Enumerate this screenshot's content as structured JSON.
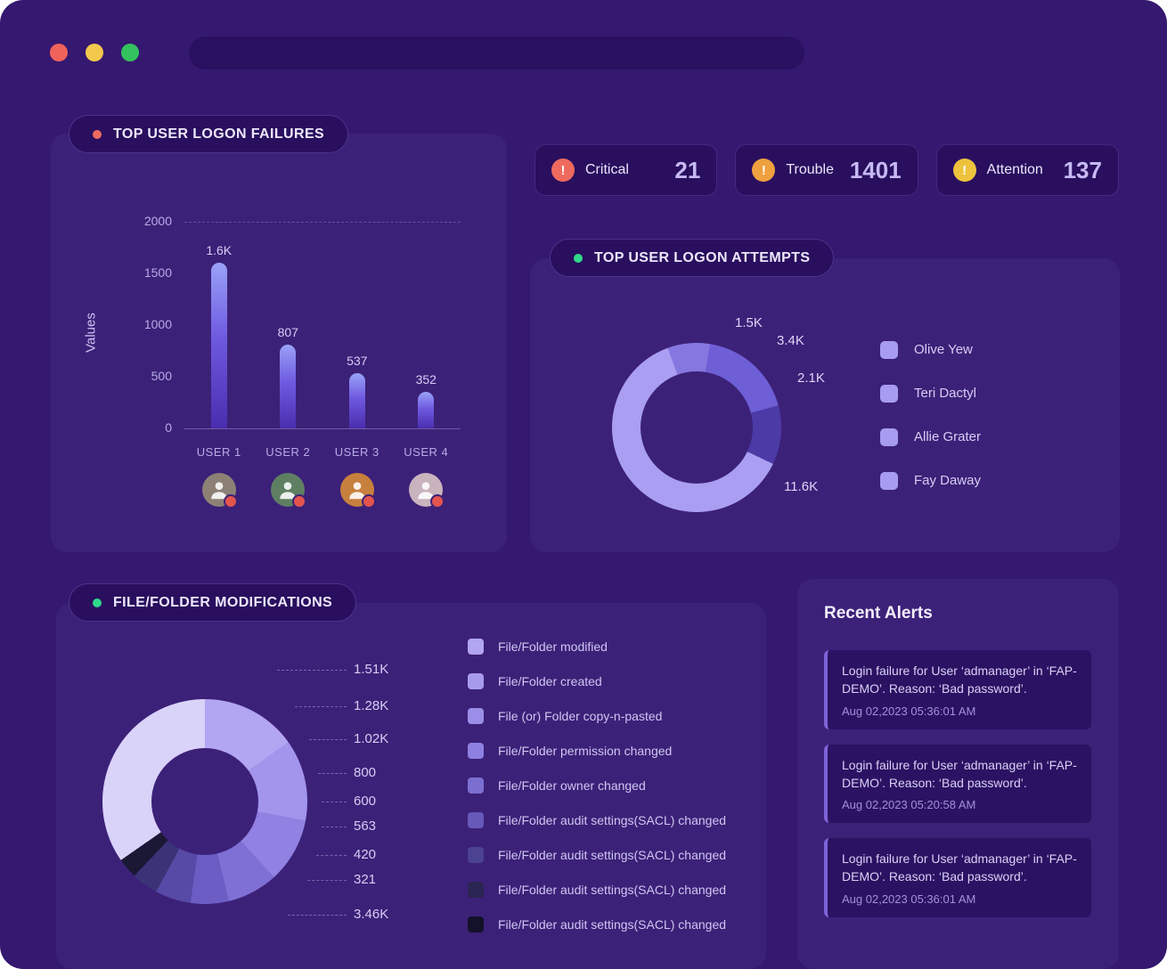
{
  "titlebar": {
    "address_value": ""
  },
  "stats": [
    {
      "label": "Critical",
      "value": "21",
      "icon_color": "#ef6a5e"
    },
    {
      "label": "Trouble",
      "value": "1401",
      "icon_color": "#efa03f"
    },
    {
      "label": "Attention",
      "value": "137",
      "icon_color": "#eec23d"
    }
  ],
  "cards": {
    "logon_failures": {
      "title": "TOP USER LOGON FAILURES",
      "dot_color": "#ef6a5e",
      "badge_color": "#e2544e",
      "avatars": [
        {
          "name": "USER 1",
          "color": "#8d8176"
        },
        {
          "name": "USER 2",
          "color": "#5f7f63"
        },
        {
          "name": "USER 3",
          "color": "#c8803e"
        },
        {
          "name": "USER 4",
          "color": "#c9b3bd"
        }
      ]
    },
    "logon_attempts": {
      "title": "TOP USER LOGON ATTEMPTS",
      "dot_color": "#2fd98a"
    },
    "file_modifications": {
      "title": "FILE/FOLDER MODIFICATIONS",
      "dot_color": "#2fd98a"
    },
    "recent_alerts": {
      "title": "Recent Alerts",
      "alerts": [
        {
          "message": "Login failure for User ‘admanager’ in ‘FAP-DEMO’. Reason: ‘Bad password’.",
          "timestamp": "Aug 02,2023 05:36:01 AM"
        },
        {
          "message": "Login failure for User ‘admanager’ in ‘FAP-DEMO’. Reason: ‘Bad password’.",
          "timestamp": "Aug 02,2023 05:20:58 AM"
        },
        {
          "message": "Login failure for User ‘admanager’ in ‘FAP-DEMO’. Reason: ‘Bad password’.",
          "timestamp": "Aug 02,2023 05:36:01 AM"
        }
      ]
    }
  },
  "chart_data": [
    {
      "type": "bar",
      "title": "TOP USER LOGON FAILURES",
      "categories": [
        "USER 1",
        "USER 2",
        "USER 3",
        "USER 4"
      ],
      "values": [
        1600,
        807,
        537,
        352
      ],
      "value_labels": [
        "1.6K",
        "807",
        "537",
        "352"
      ],
      "xlabel": "",
      "ylabel": "Values",
      "ylim": [
        0,
        2000
      ],
      "yticks": [
        2000,
        1500,
        1000,
        500,
        0
      ],
      "grid": "dashed-top",
      "bar_colors": [
        "#9aa2f8",
        "#4a2dae"
      ]
    },
    {
      "type": "pie",
      "title": "TOP USER LOGON ATTEMPTS",
      "labels": [
        "1.5K",
        "3.4K",
        "2.1K",
        "11.6K"
      ],
      "values": [
        1500,
        3400,
        2100,
        11600
      ],
      "colors": [
        "#8577e0",
        "#6e5fd6",
        "#4c3aa6",
        "#a99ef2"
      ],
      "legend": [
        "Olive Yew",
        "Teri Dactyl",
        "Allie Grater",
        "Fay Daway"
      ],
      "legend_colors": [
        "#a79cf0",
        "#a79cf0",
        "#a79cf0",
        "#a79cf0"
      ],
      "legend_position": "right"
    },
    {
      "type": "pie",
      "title": "FILE/FOLDER MODIFICATIONS",
      "labels": [
        "1.51K",
        "1.28K",
        "1.02K",
        "800",
        "600",
        "563",
        "420",
        "321",
        "3.46K"
      ],
      "values": [
        1510,
        1280,
        1020,
        800,
        600,
        563,
        420,
        321,
        3460
      ],
      "colors": [
        "#b2a5f2",
        "#a394ec",
        "#9181e2",
        "#7f70d6",
        "#6c5dc4",
        "#5749a6",
        "#3a3378",
        "#1b1836",
        "#d9d2f9"
      ],
      "legend": [
        "File/Folder modified",
        "File/Folder created",
        "File (or) Folder copy-n-pasted",
        "File/Folder permission changed",
        "File/Folder owner changed",
        "File/Folder audit settings(SACL) changed",
        "File/Folder audit settings(SACL) changed",
        "File/Folder audit settings(SACL) changed",
        "File/Folder audit settings(SACL) changed"
      ],
      "legend_colors": [
        "#b2a5f2",
        "#a89bee",
        "#9c8ee8",
        "#8d80e0",
        "#7b6fd2",
        "#6659b8",
        "#4b4292",
        "#2a2553",
        "#14112a"
      ],
      "legend_position": "right"
    }
  ]
}
